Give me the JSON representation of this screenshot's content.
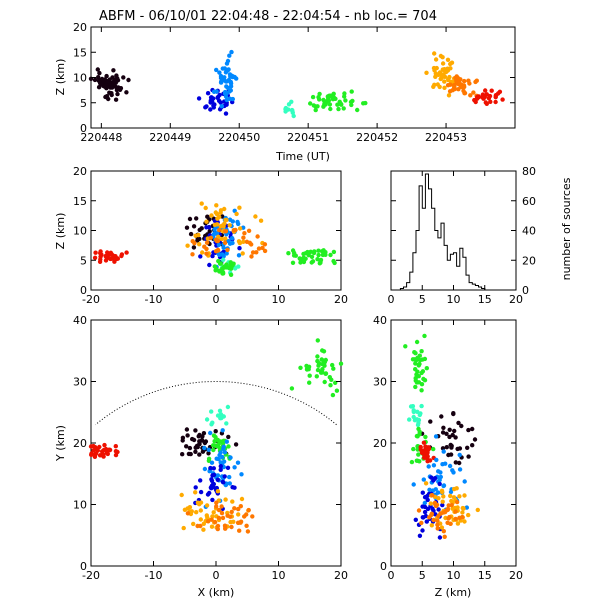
{
  "chart_data": [
    {
      "id": "time_height",
      "type": "scatter",
      "title": "ABFM - 06/10/01 22:04:48 - 22:04:54 - nb loc.=     704",
      "xlabel": "Time (UT)",
      "ylabel": "Z (km)",
      "xlim": [
        220447.85,
        220454.0
      ],
      "ylim": [
        0,
        20
      ],
      "xticks": [
        "220448",
        "220449",
        "220450",
        "220451",
        "220452",
        "220453"
      ],
      "xtick_values": [
        220448,
        220449,
        220450,
        220451,
        220452,
        220453
      ],
      "yticks": [
        0,
        5,
        10,
        15,
        20
      ],
      "series": [
        {
          "color": "#150010",
          "x": [
            220447.95,
            220448.35
          ],
          "z": [
            6.5,
            11.0
          ],
          "cx": 220448.12,
          "cz": 8.5,
          "n": 55
        },
        {
          "color": "#0000dd",
          "x": [
            220449.5,
            220449.9
          ],
          "z": [
            3.5,
            7.0
          ],
          "cx": 220449.65,
          "cz": 5.5,
          "n": 35
        },
        {
          "color": "#0088ff",
          "x": [
            220449.7,
            220449.95
          ],
          "z": [
            6.0,
            13.5
          ],
          "cx": 220449.83,
          "cz": 9.5,
          "n": 45
        },
        {
          "color": "#33ffc0",
          "x": [
            220450.65,
            220450.8
          ],
          "z": [
            2.5,
            5.0
          ],
          "cx": 220450.72,
          "cz": 4.0,
          "n": 10
        },
        {
          "color": "#22ee22",
          "x": [
            220451.1,
            220451.75
          ],
          "z": [
            3.5,
            6.5
          ],
          "cx": 220451.42,
          "cz": 5.0,
          "n": 45
        },
        {
          "color": "#ffaa00",
          "x": [
            220452.8,
            220453.15
          ],
          "z": [
            8.0,
            13.5
          ],
          "cx": 220452.98,
          "cz": 10.5,
          "n": 45
        },
        {
          "color": "#ff7700",
          "x": [
            220453.05,
            220453.4
          ],
          "z": [
            7.0,
            10.5
          ],
          "cx": 220453.22,
          "cz": 8.5,
          "n": 35
        },
        {
          "color": "#ee1100",
          "x": [
            220453.35,
            220453.8
          ],
          "z": [
            4.8,
            7.0
          ],
          "cx": 220453.58,
          "cz": 6.0,
          "n": 25
        }
      ]
    },
    {
      "id": "x_height",
      "type": "scatter",
      "xlabel": "",
      "ylabel": "Z (km)",
      "xlim": [
        -20,
        20
      ],
      "ylim": [
        0,
        20
      ],
      "xticks": [
        -20,
        -10,
        0,
        10,
        20
      ],
      "yticks": [
        0,
        5,
        10,
        15,
        20
      ],
      "series": [
        {
          "color": "#ee1100",
          "cx": -17.5,
          "cz": 5.5,
          "sx": 1.3,
          "sz": 0.5,
          "n": 30
        },
        {
          "color": "#150010",
          "cx": -1.5,
          "cz": 9.5,
          "sx": 1.6,
          "sz": 1.8,
          "n": 35
        },
        {
          "color": "#0000dd",
          "cx": 0.5,
          "cz": 8.0,
          "sx": 1.3,
          "sz": 2.0,
          "n": 35
        },
        {
          "color": "#0088ff",
          "cx": 1.5,
          "cz": 9.0,
          "sx": 1.4,
          "sz": 2.2,
          "n": 40
        },
        {
          "color": "#ffaa00",
          "cx": 1.0,
          "cz": 10.5,
          "sx": 2.8,
          "sz": 2.6,
          "n": 45
        },
        {
          "color": "#ff7700",
          "cx": 2.5,
          "cz": 8.0,
          "sx": 2.5,
          "sz": 1.5,
          "n": 35
        },
        {
          "color": "#33ffc0",
          "cx": 2.0,
          "cz": 4.0,
          "sx": 0.7,
          "sz": 0.6,
          "n": 10
        },
        {
          "color": "#22ee22",
          "cx": 1.8,
          "cz": 3.8,
          "sx": 1.0,
          "sz": 0.8,
          "n": 25
        },
        {
          "color": "#22ee22",
          "cx": 15.5,
          "cz": 5.5,
          "sx": 2.3,
          "sz": 0.8,
          "n": 40
        }
      ]
    },
    {
      "id": "height_histogram",
      "type": "line",
      "xlabel": "",
      "ylabel": "number of sources",
      "xlim": [
        0,
        20
      ],
      "ylim": [
        0,
        80
      ],
      "xticks": [
        0,
        5,
        10,
        15,
        20
      ],
      "yticks": [
        0,
        20,
        40,
        60,
        80
      ],
      "x": [
        1,
        1.5,
        2,
        2.5,
        3,
        3.5,
        4,
        4.5,
        5,
        5.5,
        6,
        6.5,
        7,
        7.5,
        8,
        8.5,
        9,
        9.5,
        10,
        10.5,
        11,
        11.5,
        12,
        12.5,
        13,
        13.5,
        14,
        14.5,
        15,
        15.5
      ],
      "values": [
        0,
        1,
        2,
        5,
        12,
        25,
        40,
        70,
        55,
        78,
        68,
        55,
        40,
        35,
        45,
        30,
        20,
        24,
        25,
        16,
        28,
        22,
        10,
        5,
        4,
        3,
        2,
        1,
        0,
        0
      ]
    },
    {
      "id": "plan_view",
      "type": "scatter",
      "xlabel": "X (km)",
      "ylabel": "Y (km)",
      "xlim": [
        -20,
        20
      ],
      "ylim": [
        0,
        40
      ],
      "xticks": [
        -20,
        -10,
        0,
        10,
        20
      ],
      "yticks": [
        0,
        10,
        20,
        30,
        40
      ],
      "range_circle_radius_km": 30,
      "series": [
        {
          "color": "#ee1100",
          "cx": -18.0,
          "cy": 18.5,
          "sx": 1.2,
          "sy": 0.6,
          "n": 30
        },
        {
          "color": "#150010",
          "cx": -2.5,
          "cy": 20.0,
          "sx": 2.2,
          "sy": 1.3,
          "n": 40
        },
        {
          "color": "#33ffc0",
          "cx": 0.5,
          "cy": 24.5,
          "sx": 1.0,
          "sy": 0.8,
          "n": 15
        },
        {
          "color": "#22ee22",
          "cx": 1.0,
          "cy": 19.5,
          "sx": 1.2,
          "sy": 1.2,
          "n": 25
        },
        {
          "color": "#22ee22",
          "cx": 16.0,
          "cy": 32.0,
          "sx": 2.2,
          "sy": 1.6,
          "n": 40
        },
        {
          "color": "#0088ff",
          "cx": 1.0,
          "cy": 16.0,
          "sx": 1.5,
          "sy": 2.5,
          "n": 40
        },
        {
          "color": "#0000dd",
          "cx": 0.0,
          "cy": 13.0,
          "sx": 1.5,
          "sy": 1.8,
          "n": 35
        },
        {
          "color": "#ffaa00",
          "cx": 0.0,
          "cy": 9.0,
          "sx": 2.5,
          "sy": 1.5,
          "n": 45
        },
        {
          "color": "#ff7700",
          "cx": 1.5,
          "cy": 8.0,
          "sx": 2.5,
          "sy": 1.2,
          "n": 35
        }
      ]
    },
    {
      "id": "height_y",
      "type": "scatter",
      "xlabel": "Z (km)",
      "ylabel": "",
      "xlim": [
        0,
        20
      ],
      "ylim": [
        0,
        40
      ],
      "xticks": [
        0,
        5,
        10,
        15,
        20
      ],
      "yticks": [
        0,
        10,
        20,
        30,
        40
      ],
      "series": [
        {
          "color": "#22ee22",
          "cx": 4.5,
          "cy": 32.0,
          "sx": 0.9,
          "sy": 2.2,
          "n": 35
        },
        {
          "color": "#33ffc0",
          "cx": 3.8,
          "cy": 24.5,
          "sx": 0.6,
          "sy": 1.2,
          "n": 15
        },
        {
          "color": "#150010",
          "cx": 9.5,
          "cy": 20.5,
          "sx": 1.8,
          "sy": 2.2,
          "n": 35
        },
        {
          "color": "#22ee22",
          "cx": 4.5,
          "cy": 19.5,
          "sx": 0.8,
          "sy": 1.5,
          "n": 20
        },
        {
          "color": "#ee1100",
          "cx": 5.5,
          "cy": 18.5,
          "sx": 0.6,
          "sy": 1.0,
          "n": 25
        },
        {
          "color": "#0088ff",
          "cx": 8.5,
          "cy": 14.0,
          "sx": 1.8,
          "sy": 2.5,
          "n": 40
        },
        {
          "color": "#0000dd",
          "cx": 6.0,
          "cy": 10.0,
          "sx": 1.2,
          "sy": 2.5,
          "n": 35
        },
        {
          "color": "#ffaa00",
          "cx": 9.5,
          "cy": 9.5,
          "sx": 2.0,
          "sy": 2.0,
          "n": 45
        },
        {
          "color": "#ff7700",
          "cx": 8.0,
          "cy": 8.5,
          "sx": 1.8,
          "sy": 1.5,
          "n": 35
        }
      ]
    }
  ]
}
